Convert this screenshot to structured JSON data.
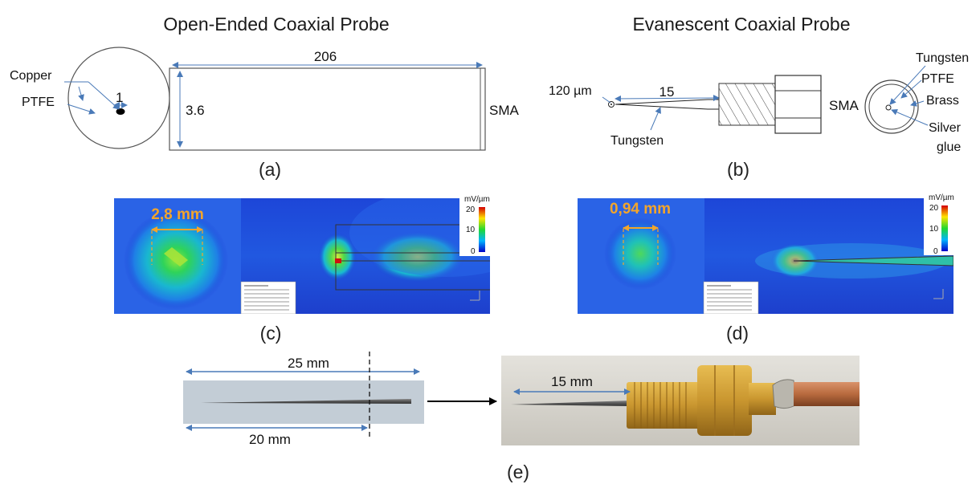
{
  "titles": {
    "open_ended": "Open-Ended Coaxial Probe",
    "evanescent": "Evanescent Coaxial Probe"
  },
  "panel_a": {
    "copper": "Copper",
    "ptfe": "PTFE",
    "center_dim": "1",
    "length_dim": "206",
    "height_dim": "3.6",
    "sma": "SMA",
    "caption": "(a)"
  },
  "panel_b": {
    "tip_dim": "120 µm",
    "length_dim": "15",
    "tungsten_bottom": "Tungsten",
    "sma": "SMA",
    "tungsten_top": "Tungsten",
    "ptfe": "PTFE",
    "brass": "Brass",
    "silver_line1": "Silver",
    "silver_line2": "glue",
    "caption": "(b)"
  },
  "panel_c": {
    "spot_label": "2,8 mm",
    "colorbar_unit": "mV/µm",
    "colorbar_ticks": [
      "20",
      "10",
      "0"
    ],
    "caption": "(c)"
  },
  "panel_d": {
    "spot_label": "0,94 mm",
    "colorbar_unit": "mV/µm",
    "colorbar_ticks": [
      "20",
      "10",
      "0"
    ],
    "caption": "(d)"
  },
  "panel_e": {
    "top_dim": "25 mm",
    "bottom_dim": "20 mm",
    "photo_dim": "15 mm",
    "caption": "(e)"
  },
  "colors": {
    "arrow_blue": "#4a7ab8",
    "field_blue": "#1c3fd6",
    "annotation_orange": "#f3a52b",
    "copper": "#b86a3e",
    "brass": "#c9962f"
  }
}
